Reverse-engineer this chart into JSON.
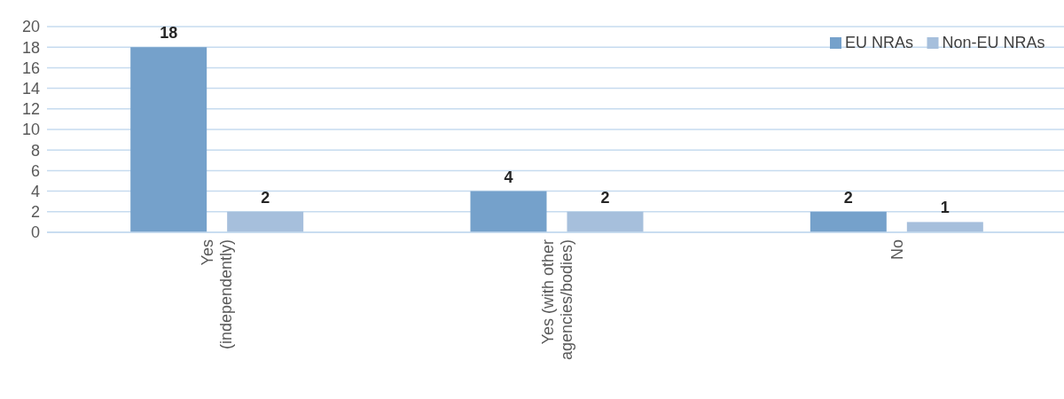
{
  "chart_data": {
    "type": "bar",
    "categories": [
      "Yes (independently)",
      "Yes (with other agencies/bodies)",
      "No"
    ],
    "series": [
      {
        "name": "EU NRAs",
        "color": "#75a1cb",
        "values": [
          18,
          4,
          2
        ]
      },
      {
        "name": "Non-EU NRAs",
        "color": "#a6bfdc",
        "values": [
          2,
          2,
          1
        ]
      }
    ],
    "ylim": [
      0,
      20
    ],
    "yticks": [
      0,
      2,
      4,
      6,
      8,
      10,
      12,
      14,
      16,
      18,
      20
    ],
    "grid": "y",
    "legend": "top right",
    "data_labels": true
  }
}
